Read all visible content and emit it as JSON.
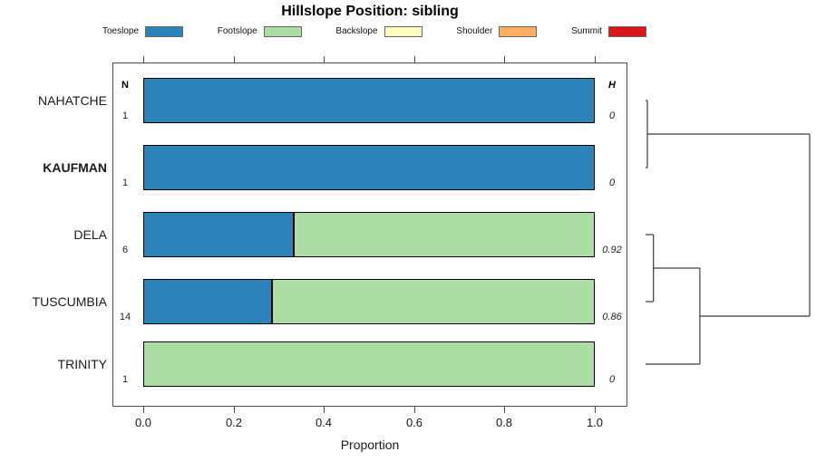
{
  "title": "Hillslope Position: sibling",
  "columns": {
    "n": "N",
    "h": "H"
  },
  "legend": [
    {
      "label": "Toeslope",
      "color": "#2B83BA"
    },
    {
      "label": "Footslope",
      "color": "#ABDDA4"
    },
    {
      "label": "Backslope",
      "color": "#FFFFBF"
    },
    {
      "label": "Shoulder",
      "color": "#FDAE61"
    },
    {
      "label": "Summit",
      "color": "#D7191C"
    }
  ],
  "x_axis": {
    "label": "Proportion",
    "ticks": [
      {
        "value": 0.0,
        "label": "0.0"
      },
      {
        "value": 0.2,
        "label": "0.2"
      },
      {
        "value": 0.4,
        "label": "0.4"
      },
      {
        "value": 0.6,
        "label": "0.6"
      },
      {
        "value": 0.8,
        "label": "0.8"
      },
      {
        "value": 1.0,
        "label": "1.0"
      }
    ]
  },
  "chart_data": {
    "type": "bar",
    "variant": "horizontal-stacked-proportion",
    "title": "Hillslope Position: sibling",
    "xlabel": "Proportion",
    "xlim": [
      0,
      1
    ],
    "grid": false,
    "legend_position": "top",
    "categories": [
      "NAHATCHE",
      "KAUFMAN",
      "DELA",
      "TUSCUMBIA",
      "TRINITY"
    ],
    "series_colors": {
      "Toeslope": "#2B83BA",
      "Footslope": "#ABDDA4",
      "Backslope": "#FFFFBF",
      "Shoulder": "#FDAE61",
      "Summit": "#D7191C"
    },
    "rows": [
      {
        "label": "NAHATCHE",
        "bold": false,
        "n": "1",
        "h": "0",
        "segments": [
          {
            "name": "Toeslope",
            "value": 1.0
          }
        ]
      },
      {
        "label": "KAUFMAN",
        "bold": true,
        "n": "1",
        "h": "0",
        "segments": [
          {
            "name": "Toeslope",
            "value": 1.0
          }
        ]
      },
      {
        "label": "DELA",
        "bold": false,
        "n": "6",
        "h": "0.92",
        "segments": [
          {
            "name": "Toeslope",
            "value": 0.333
          },
          {
            "name": "Footslope",
            "value": 0.667
          }
        ]
      },
      {
        "label": "TUSCUMBIA",
        "bold": false,
        "n": "14",
        "h": "0.86",
        "segments": [
          {
            "name": "Toeslope",
            "value": 0.286
          },
          {
            "name": "Footslope",
            "value": 0.714
          }
        ]
      },
      {
        "label": "TRINITY",
        "bold": false,
        "n": "1",
        "h": "0",
        "segments": [
          {
            "name": "Footslope",
            "value": 1.0
          }
        ]
      }
    ],
    "dendrogram": {
      "leaves": [
        "NAHATCHE",
        "KAUFMAN",
        "DELA",
        "TUSCUMBIA",
        "TRINITY"
      ],
      "merges": [
        {
          "a": "L0",
          "b": "L1",
          "h": 0.011
        },
        {
          "a": "L2",
          "b": "L3",
          "h": 0.048
        },
        {
          "a": "M1",
          "b": "L4",
          "h": 0.331
        },
        {
          "a": "M0",
          "b": "M2",
          "h": 1.0
        }
      ]
    }
  }
}
